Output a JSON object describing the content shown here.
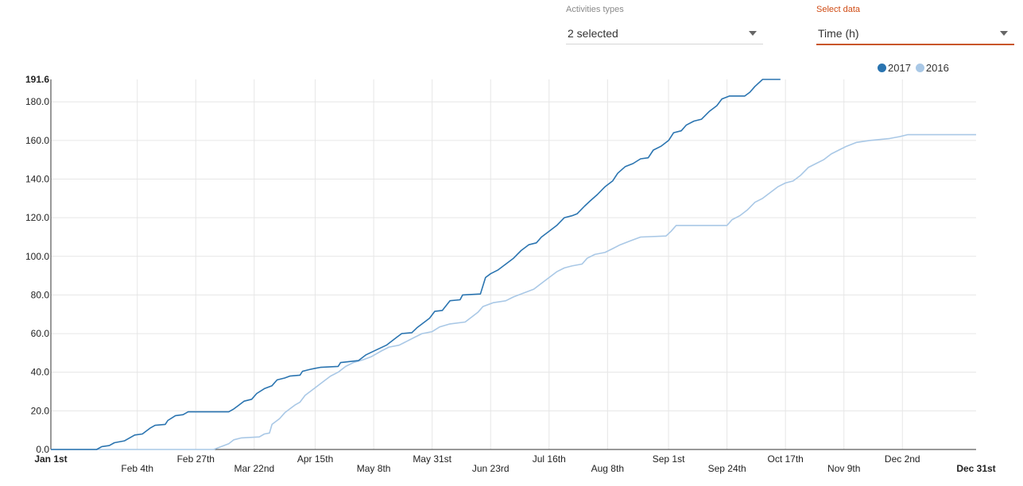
{
  "filters": {
    "activities": {
      "label": "Activities types",
      "value": "2 selected"
    },
    "select_data": {
      "label": "Select data",
      "value": "Time (h)"
    }
  },
  "legend": [
    {
      "name": "2017",
      "color": "#2a74b0"
    },
    {
      "name": "2016",
      "color": "#a9c8e6"
    }
  ],
  "chart_data": {
    "type": "line",
    "xlabel": "",
    "ylabel": "",
    "ylim": [
      0,
      191.6
    ],
    "yticks": [
      "0.0",
      "20.0",
      "40.0",
      "60.0",
      "80.0",
      "100.0",
      "120.0",
      "140.0",
      "160.0",
      "180.0",
      "191.6"
    ],
    "xticks": [
      {
        "label": "Jan 1st",
        "day": 0
      },
      {
        "label": "Feb 4th",
        "day": 34
      },
      {
        "label": "Feb 27th",
        "day": 57
      },
      {
        "label": "Mar 22nd",
        "day": 80
      },
      {
        "label": "Apr 15th",
        "day": 104
      },
      {
        "label": "May 8th",
        "day": 127
      },
      {
        "label": "May 31st",
        "day": 150
      },
      {
        "label": "Jun 23rd",
        "day": 173
      },
      {
        "label": "Jul 16th",
        "day": 196
      },
      {
        "label": "Aug 8th",
        "day": 219
      },
      {
        "label": "Sep 1st",
        "day": 243
      },
      {
        "label": "Sep 24th",
        "day": 266
      },
      {
        "label": "Oct 17th",
        "day": 289
      },
      {
        "label": "Nov 9th",
        "day": 312
      },
      {
        "label": "Dec 2nd",
        "day": 335
      },
      {
        "label": "Dec 31st",
        "day": 364
      }
    ],
    "grid": true,
    "legend_position": "top-right",
    "series": [
      {
        "name": "2017",
        "color": "#2a74b0",
        "points": [
          [
            0,
            0
          ],
          [
            18,
            0
          ],
          [
            20,
            1.5
          ],
          [
            23,
            2
          ],
          [
            25,
            3.5
          ],
          [
            29,
            4.5
          ],
          [
            31,
            6
          ],
          [
            33,
            7.5
          ],
          [
            36,
            8
          ],
          [
            39,
            11
          ],
          [
            41,
            12.5
          ],
          [
            45,
            13
          ],
          [
            46,
            15
          ],
          [
            49,
            17.5
          ],
          [
            52,
            18
          ],
          [
            54,
            19.5
          ],
          [
            70,
            19.5
          ],
          [
            72,
            21
          ],
          [
            74,
            23
          ],
          [
            76,
            25
          ],
          [
            79,
            26
          ],
          [
            81,
            29
          ],
          [
            84,
            31.5
          ],
          [
            87,
            33
          ],
          [
            89,
            36
          ],
          [
            92,
            37
          ],
          [
            94,
            38
          ],
          [
            98,
            38.5
          ],
          [
            99,
            40.5
          ],
          [
            102,
            41.5
          ],
          [
            104,
            42
          ],
          [
            106,
            42.5
          ],
          [
            113,
            43
          ],
          [
            114,
            45
          ],
          [
            121,
            46
          ],
          [
            124,
            49
          ],
          [
            128,
            51.5
          ],
          [
            132,
            54
          ],
          [
            136,
            58
          ],
          [
            138,
            60
          ],
          [
            142,
            60.5
          ],
          [
            144,
            63
          ],
          [
            147,
            66
          ],
          [
            149,
            68
          ],
          [
            151,
            71.5
          ],
          [
            154,
            72
          ],
          [
            157,
            77
          ],
          [
            161,
            77.5
          ],
          [
            162,
            80
          ],
          [
            169,
            80.5
          ],
          [
            171,
            89
          ],
          [
            173,
            91
          ],
          [
            176,
            93
          ],
          [
            179,
            96
          ],
          [
            182,
            99
          ],
          [
            185,
            103
          ],
          [
            188,
            106
          ],
          [
            191,
            107
          ],
          [
            193,
            110
          ],
          [
            196,
            113
          ],
          [
            199,
            116
          ],
          [
            202,
            120
          ],
          [
            205,
            121
          ],
          [
            207,
            122
          ],
          [
            210,
            126
          ],
          [
            212,
            128.5
          ],
          [
            215,
            132
          ],
          [
            218,
            136
          ],
          [
            221,
            139
          ],
          [
            223,
            143
          ],
          [
            226,
            146.5
          ],
          [
            229,
            148
          ],
          [
            232,
            150.5
          ],
          [
            235,
            151
          ],
          [
            237,
            155
          ],
          [
            240,
            157
          ],
          [
            243,
            160
          ],
          [
            245,
            164
          ],
          [
            248,
            165
          ],
          [
            250,
            168
          ],
          [
            253,
            170
          ],
          [
            256,
            171
          ],
          [
            259,
            175
          ],
          [
            262,
            178
          ],
          [
            264,
            181.5
          ],
          [
            267,
            183
          ],
          [
            273,
            183
          ],
          [
            275,
            185
          ],
          [
            277,
            188
          ],
          [
            280,
            191.6
          ],
          [
            287,
            191.6
          ]
        ]
      },
      {
        "name": "2016",
        "color": "#a9c8e6",
        "points": [
          [
            0,
            0
          ],
          [
            64,
            0
          ],
          [
            67,
            1.5
          ],
          [
            70,
            3
          ],
          [
            72,
            5
          ],
          [
            75,
            6
          ],
          [
            82,
            6.5
          ],
          [
            84,
            8
          ],
          [
            86,
            8.5
          ],
          [
            87,
            13
          ],
          [
            90,
            16
          ],
          [
            92,
            19
          ],
          [
            94,
            21
          ],
          [
            96,
            23
          ],
          [
            98,
            24.5
          ],
          [
            100,
            28
          ],
          [
            103,
            31
          ],
          [
            105,
            33
          ],
          [
            107,
            35
          ],
          [
            110,
            38
          ],
          [
            113,
            40
          ],
          [
            116,
            43
          ],
          [
            119,
            45
          ],
          [
            123,
            46.5
          ],
          [
            126,
            48
          ],
          [
            130,
            51
          ],
          [
            133,
            53
          ],
          [
            137,
            54
          ],
          [
            140,
            56
          ],
          [
            143,
            58
          ],
          [
            146,
            60
          ],
          [
            150,
            61
          ],
          [
            153,
            63.5
          ],
          [
            157,
            65
          ],
          [
            163,
            66
          ],
          [
            165,
            68
          ],
          [
            168,
            71
          ],
          [
            170,
            74
          ],
          [
            174,
            76
          ],
          [
            179,
            77
          ],
          [
            182,
            79
          ],
          [
            186,
            81
          ],
          [
            190,
            83
          ],
          [
            193,
            86
          ],
          [
            196,
            89
          ],
          [
            199,
            92
          ],
          [
            202,
            94
          ],
          [
            205,
            95
          ],
          [
            209,
            96
          ],
          [
            211,
            99
          ],
          [
            214,
            101
          ],
          [
            218,
            102
          ],
          [
            221,
            104
          ],
          [
            224,
            106
          ],
          [
            228,
            108
          ],
          [
            232,
            110
          ],
          [
            242,
            110.5
          ],
          [
            244,
            113
          ],
          [
            246,
            116
          ],
          [
            266,
            116
          ],
          [
            268,
            119
          ],
          [
            271,
            121
          ],
          [
            274,
            124
          ],
          [
            277,
            128
          ],
          [
            280,
            130
          ],
          [
            283,
            133
          ],
          [
            286,
            136
          ],
          [
            289,
            138
          ],
          [
            292,
            139
          ],
          [
            295,
            142
          ],
          [
            298,
            146
          ],
          [
            301,
            148
          ],
          [
            304,
            150
          ],
          [
            307,
            153
          ],
          [
            310,
            155
          ],
          [
            313,
            157
          ],
          [
            317,
            159
          ],
          [
            322,
            160
          ],
          [
            330,
            161
          ],
          [
            334,
            162
          ],
          [
            337,
            163
          ],
          [
            364,
            163
          ]
        ]
      }
    ]
  }
}
